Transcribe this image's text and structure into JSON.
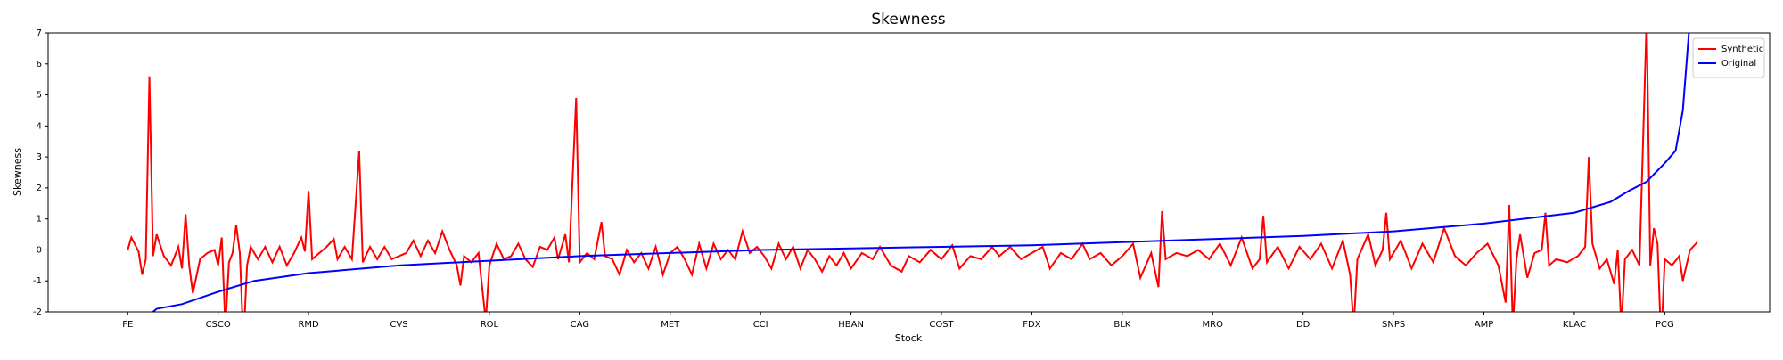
{
  "chart_data": {
    "type": "line",
    "title": "Skewness",
    "x_label": "Stock",
    "y_label": "Skewness",
    "xlim": [
      -22,
      454
    ],
    "ylim": [
      -2,
      7
    ],
    "xticks": [
      {
        "value": 0,
        "label": "FE"
      },
      {
        "value": 25,
        "label": "CSCO"
      },
      {
        "value": 50,
        "label": "RMD"
      },
      {
        "value": 75,
        "label": "CVS"
      },
      {
        "value": 100,
        "label": "ROL"
      },
      {
        "value": 125,
        "label": "CAG"
      },
      {
        "value": 150,
        "label": "MET"
      },
      {
        "value": 175,
        "label": "CCI"
      },
      {
        "value": 200,
        "label": "HBAN"
      },
      {
        "value": 225,
        "label": "COST"
      },
      {
        "value": 250,
        "label": "FDX"
      },
      {
        "value": 275,
        "label": "BLK"
      },
      {
        "value": 300,
        "label": "MRO"
      },
      {
        "value": 325,
        "label": "DD"
      },
      {
        "value": 350,
        "label": "SNPS"
      },
      {
        "value": 375,
        "label": "AMP"
      },
      {
        "value": 400,
        "label": "KLAC"
      },
      {
        "value": 425,
        "label": "PCG"
      }
    ],
    "yticks": [
      -2,
      -1,
      0,
      1,
      2,
      3,
      4,
      5,
      6,
      7
    ],
    "legend": "upper right",
    "series": [
      {
        "name": "Synthetic",
        "color": "#ff0000",
        "x": [
          0,
          1,
          3,
          4,
          5,
          6,
          7,
          8,
          10,
          12,
          14,
          15,
          16,
          17,
          18,
          20,
          22,
          24,
          25,
          26,
          27,
          28,
          29,
          30,
          31,
          32,
          33,
          34,
          36,
          38,
          40,
          42,
          44,
          46,
          48,
          49,
          50,
          51,
          53,
          55,
          57,
          58,
          60,
          62,
          64,
          65,
          67,
          69,
          71,
          73,
          75,
          77,
          79,
          81,
          83,
          85,
          87,
          89,
          91,
          92,
          93,
          95,
          97,
          99,
          100,
          102,
          104,
          106,
          108,
          110,
          112,
          114,
          116,
          118,
          119,
          121,
          122,
          124,
          125,
          127,
          129,
          131,
          132,
          134,
          136,
          138,
          140,
          142,
          144,
          146,
          148,
          150,
          152,
          154,
          156,
          158,
          160,
          162,
          164,
          166,
          168,
          170,
          172,
          174,
          176,
          178,
          180,
          182,
          184,
          186,
          188,
          190,
          192,
          194,
          196,
          198,
          200,
          203,
          206,
          208,
          211,
          214,
          216,
          219,
          222,
          225,
          228,
          230,
          233,
          236,
          239,
          241,
          244,
          247,
          250,
          253,
          255,
          258,
          261,
          264,
          266,
          269,
          272,
          275,
          278,
          280,
          283,
          285,
          286,
          287,
          290,
          293,
          296,
          299,
          302,
          305,
          308,
          311,
          313,
          314,
          315,
          318,
          321,
          324,
          327,
          330,
          333,
          336,
          338,
          339,
          340,
          343,
          345,
          347,
          348,
          349,
          352,
          355,
          358,
          361,
          364,
          367,
          370,
          373,
          376,
          379,
          381,
          382,
          383,
          384,
          385,
          387,
          389,
          391,
          392,
          393,
          395,
          398,
          401,
          403,
          404,
          405,
          407,
          409,
          411,
          412,
          413,
          414,
          416,
          418,
          420,
          421,
          422,
          423,
          424,
          425,
          427,
          429,
          430,
          432,
          434
        ],
        "values": [
          0,
          0.4,
          -0.05,
          -0.8,
          -0.3,
          5.6,
          -0.2,
          0.5,
          -0.2,
          -0.5,
          0.1,
          -0.6,
          1.15,
          -0.5,
          -1.4,
          -0.3,
          -0.1,
          0,
          -0.5,
          0.4,
          -2.5,
          -0.4,
          -0.1,
          0.8,
          -0.1,
          -3,
          -0.5,
          0.1,
          -0.3,
          0.1,
          -0.4,
          0.1,
          -0.5,
          -0.1,
          0.4,
          -0.05,
          1.9,
          -0.3,
          -0.1,
          0.1,
          0.35,
          -0.3,
          0.1,
          -0.3,
          3.2,
          -0.4,
          0.1,
          -0.3,
          0.1,
          -0.3,
          -0.2,
          -0.1,
          0.3,
          -0.2,
          0.3,
          -0.1,
          0.6,
          0,
          -0.5,
          -1.15,
          -0.2,
          -0.4,
          -0.1,
          -2.3,
          -0.5,
          0.2,
          -0.3,
          -0.2,
          0.2,
          -0.3,
          -0.55,
          0.1,
          0,
          0.4,
          -0.3,
          0.5,
          -0.4,
          4.9,
          -0.4,
          -0.1,
          -0.3,
          0.9,
          -0.2,
          -0.3,
          -0.8,
          0,
          -0.4,
          -0.1,
          -0.6,
          0.1,
          -0.8,
          -0.1,
          0.1,
          -0.3,
          -0.8,
          0.2,
          -0.6,
          0.2,
          -0.3,
          0,
          -0.3,
          0.6,
          -0.1,
          0.1,
          -0.2,
          -0.6,
          0.2,
          -0.3,
          0.1,
          -0.6,
          0,
          -0.3,
          -0.7,
          -0.2,
          -0.5,
          -0.1,
          -0.6,
          -0.1,
          -0.3,
          0.1,
          -0.5,
          -0.7,
          -0.2,
          -0.4,
          0,
          -0.3,
          0.15,
          -0.6,
          -0.2,
          -0.3,
          0.1,
          -0.2,
          0.1,
          -0.3,
          -0.1,
          0.1,
          -0.6,
          -0.1,
          -0.3,
          0.2,
          -0.3,
          -0.1,
          -0.5,
          -0.2,
          0.2,
          -0.9,
          -0.1,
          -1.2,
          1.25,
          -0.3,
          -0.1,
          -0.2,
          0,
          -0.3,
          0.2,
          -0.5,
          0.4,
          -0.6,
          -0.3,
          1.1,
          -0.4,
          0.1,
          -0.6,
          0.1,
          -0.3,
          0.2,
          -0.6,
          0.3,
          -0.8,
          -2.5,
          -0.3,
          0.5,
          -0.5,
          0,
          1.2,
          -0.3,
          0.3,
          -0.6,
          0.2,
          -0.4,
          0.7,
          -0.2,
          -0.5,
          -0.1,
          0.2,
          -0.5,
          -1.7,
          1.45,
          -2.5,
          -0.3,
          0.5,
          -0.9,
          -0.1,
          0,
          1.2,
          -0.5,
          -0.3,
          -0.4,
          -0.2,
          0.1,
          3,
          0.2,
          -0.6,
          -0.3,
          -1.1,
          0,
          -2.5,
          -0.3,
          0,
          -0.5,
          7.5,
          -0.5,
          0.7,
          0.2,
          -3,
          -0.3,
          -0.5,
          -0.2,
          -1,
          0,
          0.25
        ]
      },
      {
        "name": "Original",
        "color": "#0000ff",
        "x": [
          7,
          8,
          15,
          25,
          35,
          50,
          75,
          100,
          125,
          150,
          175,
          200,
          225,
          250,
          275,
          300,
          325,
          350,
          375,
          400,
          410,
          415,
          420,
          425,
          428,
          430,
          431,
          432
        ],
        "values": [
          -2,
          -1.9,
          -1.75,
          -1.35,
          -1,
          -0.75,
          -0.5,
          -0.35,
          -0.2,
          -0.1,
          0,
          0.05,
          0.1,
          0.15,
          0.25,
          0.35,
          0.45,
          0.6,
          0.85,
          1.2,
          1.55,
          1.9,
          2.2,
          2.8,
          3.2,
          4.5,
          6,
          7.5
        ]
      }
    ]
  }
}
